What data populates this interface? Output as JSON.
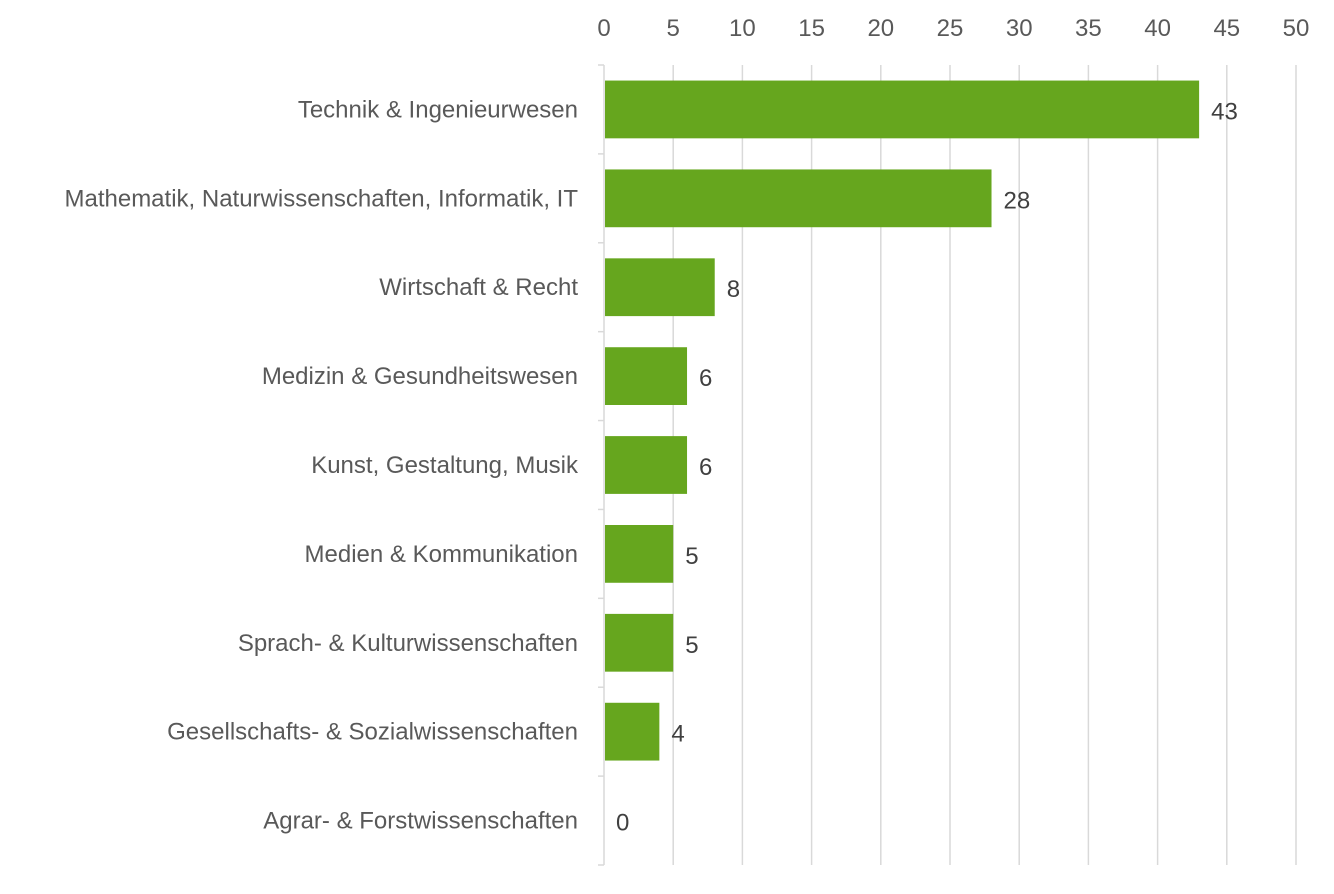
{
  "chart_data": {
    "type": "bar",
    "orientation": "horizontal",
    "title": "",
    "xlabel": "",
    "ylabel": "",
    "categories": [
      "Technik & Ingenieurwesen",
      "Mathematik, Naturwissenschaften, Informatik, IT",
      "Wirtschaft & Recht",
      "Medizin & Gesundheitswesen",
      "Kunst, Gestaltung, Musik",
      "Medien & Kommunikation",
      "Sprach- & Kulturwissenschaften",
      "Gesellschafts- & Sozialwissenschaften",
      "Agrar- & Forstwissenschaften"
    ],
    "values": [
      43,
      28,
      8,
      6,
      6,
      5,
      5,
      4,
      0
    ],
    "xlim": [
      0,
      50
    ],
    "x_ticks": [
      0,
      5,
      10,
      15,
      20,
      25,
      30,
      35,
      40,
      45,
      50
    ],
    "x_axis_position": "top",
    "grid": true,
    "legend": "none",
    "data_labels": true,
    "bar_color": "#66a61e"
  }
}
